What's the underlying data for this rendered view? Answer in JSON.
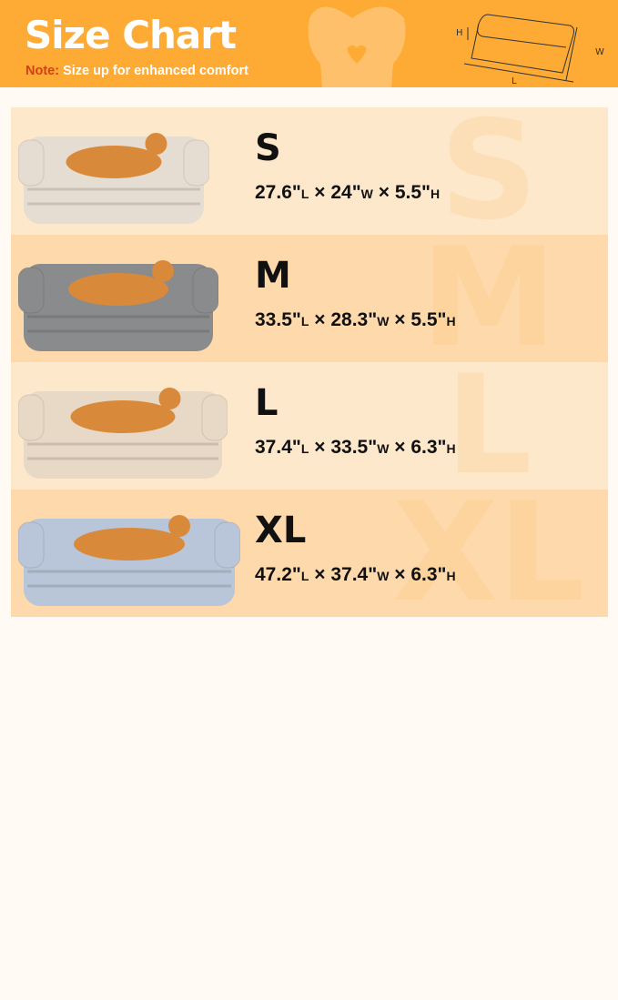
{
  "header": {
    "title": "Size Chart",
    "note_label": "Note:",
    "note_text": " Size up for enhanced comfort",
    "diagram": {
      "h": "H",
      "w": "W",
      "l": "L"
    }
  },
  "colors": {
    "header": "#fdab35",
    "row_light": "#fde8cc",
    "row_dark": "#fdd9ac",
    "note_label": "#d2401a"
  },
  "sizes": [
    {
      "label": "S",
      "l": "27.6\"",
      "w": "24\"",
      "h": "5.5\"",
      "bed_color": "#e6ddd2",
      "watermark": "S"
    },
    {
      "label": "M",
      "l": "33.5\"",
      "w": "28.3\"",
      "h": "5.5\"",
      "bed_color": "#8a8b8c",
      "watermark": "M"
    },
    {
      "label": "L",
      "l": "37.4\"",
      "w": "33.5\"",
      "h": "6.3\"",
      "bed_color": "#e7d9c6",
      "watermark": "L"
    },
    {
      "label": "XL",
      "l": "47.2\"",
      "w": "37.4\"",
      "h": "6.3\"",
      "bed_color": "#b9c5d8",
      "watermark": "XL"
    }
  ],
  "units": {
    "l": "L",
    "w": "W",
    "h": "H",
    "times": " × "
  }
}
